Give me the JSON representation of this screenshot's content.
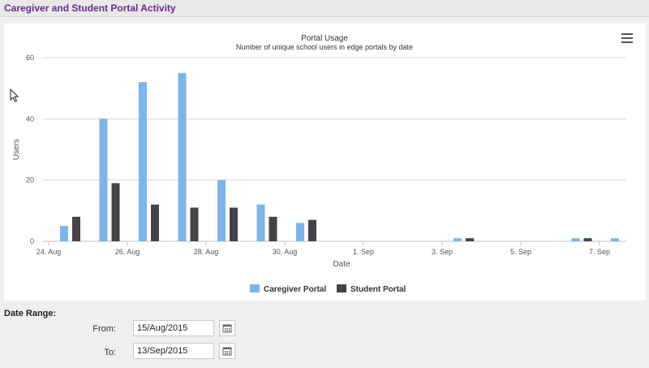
{
  "section": {
    "title": "Caregiver and Student Portal Activity"
  },
  "icons": {
    "chart_menu": "hamburger-menu-icon",
    "calendar": "calendar-icon",
    "cursor": "mouse-pointer-icon"
  },
  "colors": {
    "caregiver": "#7cb5ec",
    "student": "#434348",
    "title": "#6a2c8c"
  },
  "chart_data": {
    "type": "bar",
    "title": "Portal Usage",
    "subtitle": "Number of unique school users in edge portals by date",
    "xlabel": "Date",
    "ylabel": "Users",
    "ylim": [
      0,
      60
    ],
    "yticks": [
      0,
      20,
      40,
      60
    ],
    "x_tick_labels": [
      "24. Aug",
      "26. Aug",
      "28. Aug",
      "30. Aug",
      "1. Sep",
      "3. Sep",
      "5. Sep",
      "7. Sep"
    ],
    "categories": [
      "24 Aug",
      "25 Aug",
      "26 Aug",
      "27 Aug",
      "28 Aug",
      "29 Aug",
      "30 Aug",
      "31 Aug",
      "1 Sep",
      "2 Sep",
      "3 Sep",
      "4 Sep",
      "5 Sep",
      "6 Sep",
      "7 Sep"
    ],
    "series": [
      {
        "name": "Caregiver Portal",
        "values": [
          5,
          40,
          52,
          55,
          20,
          12,
          6,
          0,
          0,
          0,
          1,
          0,
          0,
          1,
          1
        ]
      },
      {
        "name": "Student Portal",
        "values": [
          8,
          19,
          12,
          11,
          11,
          8,
          7,
          0,
          0,
          0,
          1,
          0,
          0,
          1,
          0
        ]
      }
    ],
    "grid": true,
    "legend_placement": "bottom"
  },
  "date_range": {
    "label": "Date Range:",
    "from_label": "From:",
    "from_value": "15/Aug/2015",
    "to_label": "To:",
    "to_value": "13/Sep/2015"
  }
}
